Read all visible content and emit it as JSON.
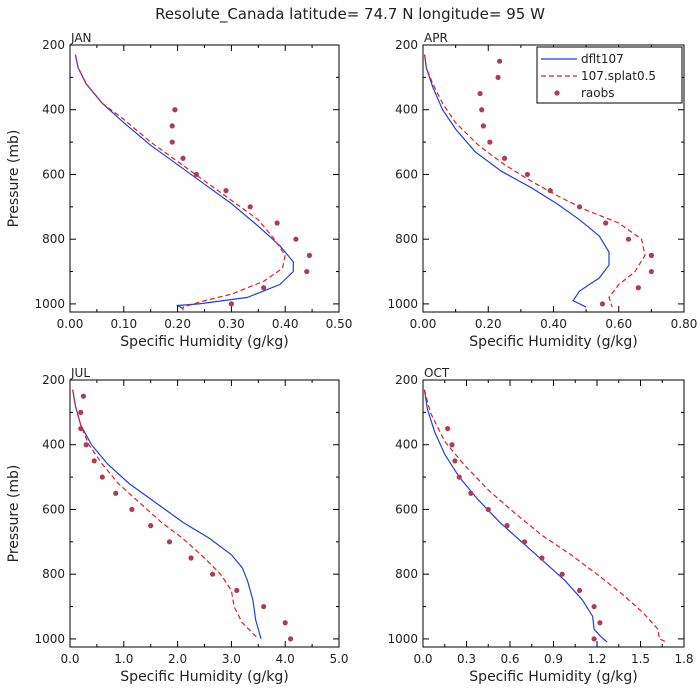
{
  "title": "Resolute_Canada  latitude= 74.7 N longitude= 95 W",
  "legend": [
    {
      "name": "dflt107",
      "style": "solid",
      "color": "#1f3fe0"
    },
    {
      "name": "107.splat0.5",
      "style": "dashed",
      "color": "#e02020"
    },
    {
      "name": "raobs",
      "style": "marker",
      "color": "#b03a5a"
    }
  ],
  "chart_data": [
    {
      "type": "line",
      "title": "JAN",
      "xlabel": "Specific Humidity (g/kg)",
      "ylabel": "Pressure (mb)",
      "xlim": [
        0,
        0.5
      ],
      "ylim": [
        200,
        1025
      ],
      "y_inverted": true,
      "xticks": [
        "0.00",
        "0.10",
        "0.20",
        "0.30",
        "0.40",
        "0.50"
      ],
      "yticks": [
        "200",
        "400",
        "600",
        "800",
        "1000"
      ],
      "series": [
        {
          "name": "dflt107",
          "points": [
            [
              0.01,
              230
            ],
            [
              0.015,
              270
            ],
            [
              0.03,
              320
            ],
            [
              0.06,
              380
            ],
            [
              0.1,
              440
            ],
            [
              0.15,
              510
            ],
            [
              0.2,
              570
            ],
            [
              0.25,
              630
            ],
            [
              0.3,
              690
            ],
            [
              0.35,
              760
            ],
            [
              0.39,
              820
            ],
            [
              0.415,
              870
            ],
            [
              0.415,
              900
            ],
            [
              0.39,
              940
            ],
            [
              0.33,
              980
            ],
            [
              0.24,
              1000
            ],
            [
              0.2,
              1005
            ],
            [
              0.21,
              1015
            ]
          ]
        },
        {
          "name": "107.splat0.5",
          "points": [
            [
              0.01,
              230
            ],
            [
              0.015,
              270
            ],
            [
              0.03,
              320
            ],
            [
              0.06,
              380
            ],
            [
              0.1,
              430
            ],
            [
              0.15,
              500
            ],
            [
              0.2,
              560
            ],
            [
              0.25,
              620
            ],
            [
              0.3,
              680
            ],
            [
              0.35,
              740
            ],
            [
              0.38,
              800
            ],
            [
              0.4,
              850
            ],
            [
              0.395,
              890
            ],
            [
              0.36,
              930
            ],
            [
              0.3,
              970
            ],
            [
              0.25,
              990
            ],
            [
              0.21,
              1010
            ],
            [
              0.21,
              1020
            ]
          ]
        },
        {
          "name": "raobs",
          "points": [
            [
              0.195,
              400
            ],
            [
              0.19,
              450
            ],
            [
              0.19,
              500
            ],
            [
              0.21,
              550
            ],
            [
              0.235,
              600
            ],
            [
              0.29,
              650
            ],
            [
              0.335,
              700
            ],
            [
              0.385,
              750
            ],
            [
              0.42,
              800
            ],
            [
              0.445,
              850
            ],
            [
              0.44,
              900
            ],
            [
              0.36,
              950
            ],
            [
              0.3,
              1000
            ]
          ]
        }
      ]
    },
    {
      "type": "line",
      "title": "APR",
      "xlabel": "Specific Humidity (g/kg)",
      "ylabel": "",
      "xlim": [
        0,
        0.8
      ],
      "ylim": [
        200,
        1025
      ],
      "y_inverted": true,
      "xticks": [
        "0.00",
        "0.20",
        "0.40",
        "0.60",
        "0.80"
      ],
      "yticks": [
        "200",
        "400",
        "600",
        "800",
        "1000"
      ],
      "series": [
        {
          "name": "dflt107",
          "points": [
            [
              0.005,
              230
            ],
            [
              0.01,
              270
            ],
            [
              0.03,
              330
            ],
            [
              0.06,
              400
            ],
            [
              0.1,
              460
            ],
            [
              0.16,
              530
            ],
            [
              0.24,
              590
            ],
            [
              0.33,
              640
            ],
            [
              0.41,
              690
            ],
            [
              0.48,
              740
            ],
            [
              0.54,
              790
            ],
            [
              0.57,
              840
            ],
            [
              0.57,
              880
            ],
            [
              0.54,
              920
            ],
            [
              0.48,
              960
            ],
            [
              0.46,
              990
            ],
            [
              0.5,
              1010
            ]
          ]
        },
        {
          "name": "107.splat0.5",
          "points": [
            [
              0.005,
              230
            ],
            [
              0.01,
              270
            ],
            [
              0.03,
              320
            ],
            [
              0.06,
              380
            ],
            [
              0.1,
              440
            ],
            [
              0.17,
              510
            ],
            [
              0.25,
              570
            ],
            [
              0.33,
              620
            ],
            [
              0.42,
              670
            ],
            [
              0.5,
              710
            ],
            [
              0.6,
              750
            ],
            [
              0.67,
              800
            ],
            [
              0.68,
              850
            ],
            [
              0.65,
              900
            ],
            [
              0.6,
              940
            ],
            [
              0.57,
              980
            ],
            [
              0.58,
              1010
            ]
          ]
        },
        {
          "name": "raobs",
          "points": [
            [
              0.235,
              250
            ],
            [
              0.23,
              300
            ],
            [
              0.175,
              350
            ],
            [
              0.18,
              400
            ],
            [
              0.185,
              450
            ],
            [
              0.205,
              500
            ],
            [
              0.25,
              550
            ],
            [
              0.32,
              600
            ],
            [
              0.39,
              650
            ],
            [
              0.48,
              700
            ],
            [
              0.56,
              750
            ],
            [
              0.63,
              800
            ],
            [
              0.7,
              850
            ],
            [
              0.7,
              900
            ],
            [
              0.66,
              950
            ],
            [
              0.55,
              1000
            ]
          ]
        }
      ]
    },
    {
      "type": "line",
      "title": "JUL",
      "xlabel": "Specific Humidity (g/kg)",
      "ylabel": "Pressure (mb)",
      "xlim": [
        0,
        5
      ],
      "ylim": [
        200,
        1025
      ],
      "y_inverted": true,
      "xticks": [
        "0.0",
        "1.0",
        "2.0",
        "3.0",
        "4.0",
        "5.0"
      ],
      "yticks": [
        "200",
        "400",
        "600",
        "800",
        "1000"
      ],
      "series": [
        {
          "name": "dflt107",
          "points": [
            [
              0.05,
              230
            ],
            [
              0.1,
              280
            ],
            [
              0.2,
              340
            ],
            [
              0.4,
              400
            ],
            [
              0.7,
              460
            ],
            [
              1.1,
              520
            ],
            [
              1.6,
              580
            ],
            [
              2.1,
              640
            ],
            [
              2.6,
              690
            ],
            [
              3.0,
              740
            ],
            [
              3.2,
              780
            ],
            [
              3.3,
              820
            ],
            [
              3.4,
              880
            ],
            [
              3.45,
              940
            ],
            [
              3.55,
              1000
            ]
          ]
        },
        {
          "name": "107.splat0.5",
          "points": [
            [
              0.05,
              230
            ],
            [
              0.1,
              280
            ],
            [
              0.2,
              340
            ],
            [
              0.35,
              400
            ],
            [
              0.6,
              460
            ],
            [
              0.9,
              520
            ],
            [
              1.3,
              580
            ],
            [
              1.7,
              640
            ],
            [
              2.1,
              690
            ],
            [
              2.5,
              750
            ],
            [
              2.8,
              800
            ],
            [
              3.0,
              850
            ],
            [
              3.05,
              900
            ],
            [
              3.2,
              950
            ],
            [
              3.5,
              1000
            ]
          ]
        },
        {
          "name": "raobs",
          "points": [
            [
              0.25,
              250
            ],
            [
              0.2,
              300
            ],
            [
              0.2,
              350
            ],
            [
              0.3,
              400
            ],
            [
              0.45,
              450
            ],
            [
              0.6,
              500
            ],
            [
              0.85,
              550
            ],
            [
              1.15,
              600
            ],
            [
              1.5,
              650
            ],
            [
              1.85,
              700
            ],
            [
              2.25,
              750
            ],
            [
              2.65,
              800
            ],
            [
              3.1,
              850
            ],
            [
              3.6,
              900
            ],
            [
              4.0,
              950
            ],
            [
              4.1,
              1000
            ]
          ]
        }
      ]
    },
    {
      "type": "line",
      "title": "OCT",
      "xlabel": "Specific Humidity (g/kg)",
      "ylabel": "",
      "xlim": [
        0,
        1.8
      ],
      "ylim": [
        200,
        1025
      ],
      "y_inverted": true,
      "xticks": [
        "0.0",
        "0.3",
        "0.6",
        "0.9",
        "1.2",
        "1.5",
        "1.8"
      ],
      "yticks": [
        "200",
        "400",
        "600",
        "800",
        "1000"
      ],
      "series": [
        {
          "name": "dflt107",
          "points": [
            [
              0.01,
              230
            ],
            [
              0.03,
              290
            ],
            [
              0.08,
              360
            ],
            [
              0.15,
              430
            ],
            [
              0.25,
              500
            ],
            [
              0.38,
              570
            ],
            [
              0.53,
              640
            ],
            [
              0.68,
              700
            ],
            [
              0.83,
              760
            ],
            [
              0.98,
              820
            ],
            [
              1.1,
              880
            ],
            [
              1.17,
              930
            ],
            [
              1.18,
              970
            ],
            [
              1.22,
              990
            ],
            [
              1.27,
              1010
            ]
          ]
        },
        {
          "name": "107.splat0.5",
          "points": [
            [
              0.01,
              230
            ],
            [
              0.05,
              300
            ],
            [
              0.15,
              390
            ],
            [
              0.28,
              460
            ],
            [
              0.45,
              540
            ],
            [
              0.63,
              610
            ],
            [
              0.82,
              680
            ],
            [
              1.02,
              740
            ],
            [
              1.2,
              800
            ],
            [
              1.37,
              860
            ],
            [
              1.52,
              920
            ],
            [
              1.62,
              970
            ],
            [
              1.63,
              1000
            ],
            [
              1.68,
              1010
            ]
          ]
        },
        {
          "name": "raobs",
          "points": [
            [
              0.17,
              350
            ],
            [
              0.2,
              400
            ],
            [
              0.22,
              450
            ],
            [
              0.25,
              500
            ],
            [
              0.33,
              550
            ],
            [
              0.45,
              600
            ],
            [
              0.58,
              650
            ],
            [
              0.7,
              700
            ],
            [
              0.82,
              750
            ],
            [
              0.96,
              800
            ],
            [
              1.08,
              850
            ],
            [
              1.18,
              900
            ],
            [
              1.22,
              950
            ],
            [
              1.18,
              1000
            ]
          ]
        }
      ]
    }
  ]
}
